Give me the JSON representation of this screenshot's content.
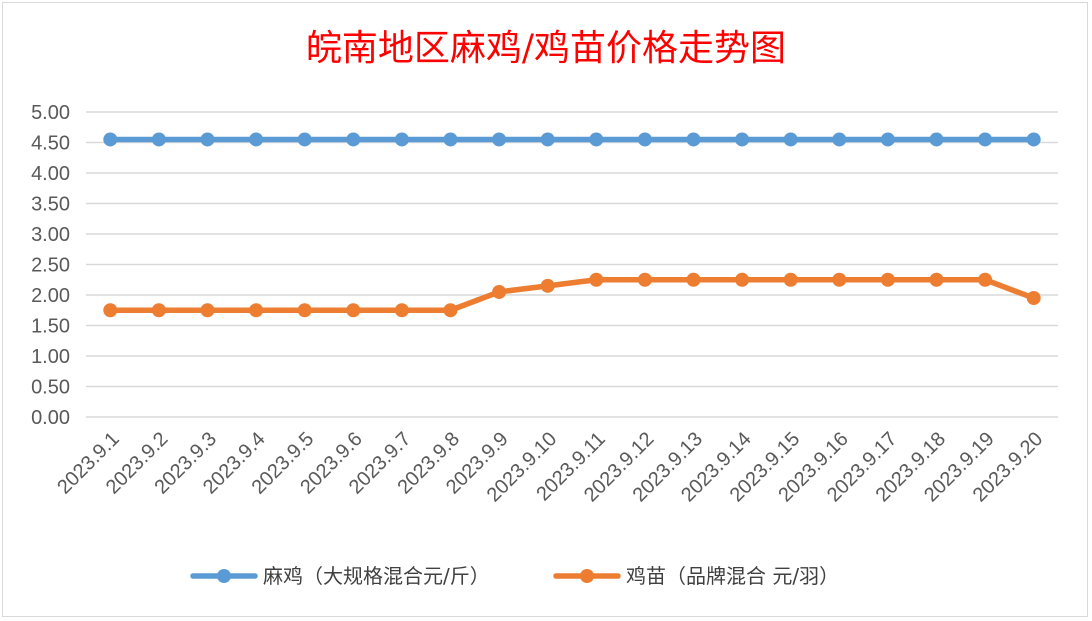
{
  "chart_data": {
    "type": "line",
    "title": "皖南地区麻鸡/鸡苗价格走势图",
    "categories": [
      "2023.9.1",
      "2023.9.2",
      "2023.9.3",
      "2023.9.4",
      "2023.9.5",
      "2023.9.6",
      "2023.9.7",
      "2023.9.8",
      "2023.9.9",
      "2023.9.10",
      "2023.9.11",
      "2023.9.12",
      "2023.9.13",
      "2023.9.14",
      "2023.9.15",
      "2023.9.16",
      "2023.9.17",
      "2023.9.18",
      "2023.9.19",
      "2023.9.20"
    ],
    "y_ticks": [
      "0.00",
      "0.50",
      "1.00",
      "1.50",
      "2.00",
      "2.50",
      "3.00",
      "3.50",
      "4.00",
      "4.50",
      "5.00"
    ],
    "ylim": [
      0,
      5
    ],
    "grid": true,
    "legend_position": "bottom",
    "series": [
      {
        "name": "麻鸡（大规格混合元/斤）",
        "color": "#5b9bd5",
        "values": [
          4.55,
          4.55,
          4.55,
          4.55,
          4.55,
          4.55,
          4.55,
          4.55,
          4.55,
          4.55,
          4.55,
          4.55,
          4.55,
          4.55,
          4.55,
          4.55,
          4.55,
          4.55,
          4.55,
          4.55
        ]
      },
      {
        "name": "鸡苗（品牌混合 元/羽）",
        "color": "#ed7d31",
        "values": [
          1.75,
          1.75,
          1.75,
          1.75,
          1.75,
          1.75,
          1.75,
          1.75,
          2.05,
          2.15,
          2.25,
          2.25,
          2.25,
          2.25,
          2.25,
          2.25,
          2.25,
          2.25,
          2.25,
          1.95
        ]
      }
    ]
  }
}
